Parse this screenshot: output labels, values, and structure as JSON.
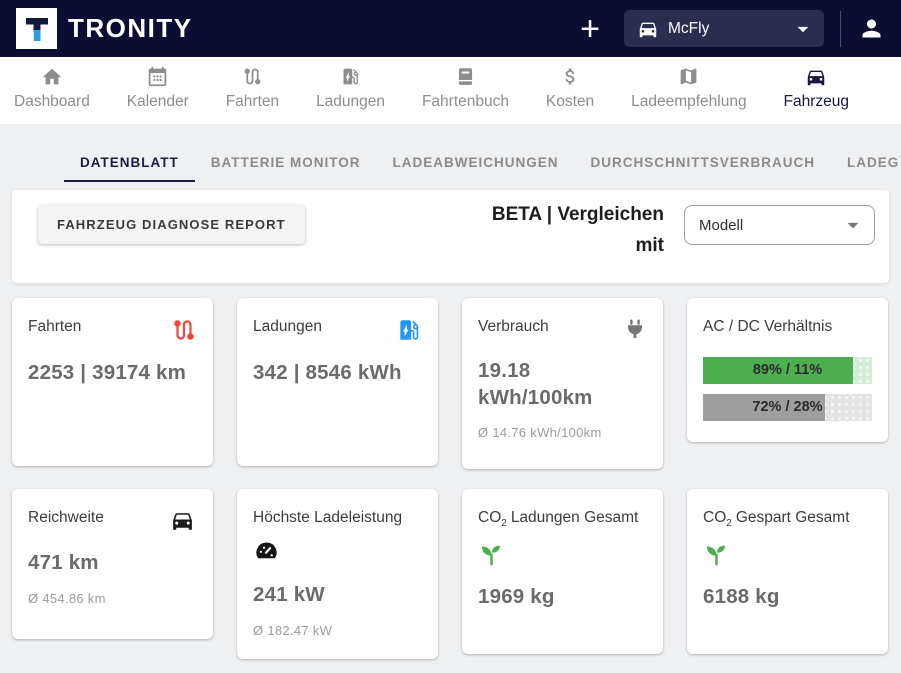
{
  "header": {
    "brand": "TRONITY",
    "add_button": "+",
    "vehicle": "McFly"
  },
  "nav": {
    "items": [
      {
        "label": "Dashboard",
        "icon": "home-icon",
        "active": false
      },
      {
        "label": "Kalender",
        "icon": "calendar-icon",
        "active": false
      },
      {
        "label": "Fahrten",
        "icon": "route-icon",
        "active": false
      },
      {
        "label": "Ladungen",
        "icon": "ev-station-icon",
        "active": false
      },
      {
        "label": "Fahrtenbuch",
        "icon": "book-icon",
        "active": false
      },
      {
        "label": "Kosten",
        "icon": "dollar-icon",
        "active": false
      },
      {
        "label": "Ladeempfehlung",
        "icon": "map-icon",
        "active": false
      },
      {
        "label": "Fahrzeug",
        "icon": "car-icon",
        "active": true
      }
    ]
  },
  "tabs": {
    "items": [
      {
        "label": "DATENBLATT",
        "active": true
      },
      {
        "label": "BATTERIE MONITOR",
        "active": false
      },
      {
        "label": "LADEABWEICHUNGEN",
        "active": false
      },
      {
        "label": "DURCHSCHNITTSVERBRAUCH",
        "active": false
      },
      {
        "label": "LADEG",
        "active": false
      }
    ]
  },
  "toolbar": {
    "report_button": "FAHRZEUG DIAGNOSE REPORT",
    "compare_label": "BETA | Vergleichen mit",
    "model_dropdown": "Modell"
  },
  "cards": [
    {
      "title": "Fahrten",
      "icon": "route-icon",
      "value": "2253 | 39174 km"
    },
    {
      "title": "Ladungen",
      "icon": "ev-station-icon",
      "value": "342 | 8546 kWh"
    },
    {
      "title": "Verbrauch",
      "icon": "plug-icon",
      "value": "19.18 kWh/100km",
      "average": "Ø 14.76 kWh/100km"
    },
    {
      "title": "AC / DC Verhältnis",
      "bars": [
        {
          "label": "89% / 11%",
          "percent": 89,
          "fill_color": "#4caf50",
          "track_color": "#d7ecd8"
        },
        {
          "label": "72% / 28%",
          "percent": 72,
          "fill_color": "#9e9e9e",
          "track_color": "#e3e3e3"
        }
      ]
    },
    {
      "title": "Reichweite",
      "icon": "car-icon",
      "value": "471 km",
      "average": "Ø 454.86 km"
    },
    {
      "title": "Höchste Ladeleistung",
      "icon": "speedometer-icon",
      "value": "241 kW",
      "average": "Ø 182.47 kW"
    },
    {
      "title_main": "CO",
      "title_sub": "2",
      "title_rest": "Ladungen Gesamt",
      "icon": "seedling-icon",
      "value": "1969 kg"
    },
    {
      "title_main": "CO",
      "title_sub": "2",
      "title_rest": "Gespart Gesamt",
      "icon": "seedling-icon",
      "value": "6188 kg"
    }
  ],
  "colors": {
    "header_bg": "#0b0d33",
    "active_navy": "#171a3e",
    "green": "#4caf50",
    "blue": "#2196f3",
    "red": "#f44336",
    "page_bg": "#eef0f2"
  }
}
